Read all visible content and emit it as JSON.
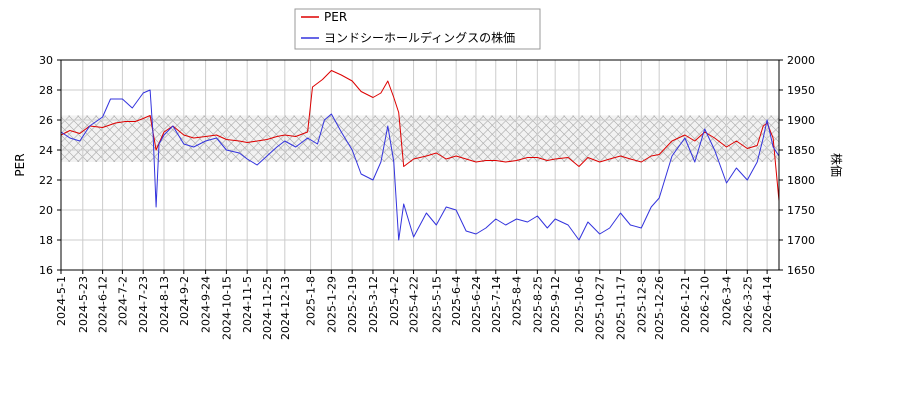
{
  "chart_data": {
    "type": "line",
    "title": "",
    "xlabel": "",
    "ylabel_left": "PER",
    "ylabel_right": "株価",
    "ylim_left": [
      16,
      30
    ],
    "ylim_right": [
      1650,
      2000
    ],
    "yticks_left": [
      "16",
      "18",
      "20",
      "22",
      "24",
      "26",
      "28",
      "30"
    ],
    "yticks_right": [
      "1650",
      "1700",
      "1750",
      "1800",
      "1850",
      "1900",
      "1950",
      "2000"
    ],
    "x_start": "2024-5-1",
    "x_end": "2026-4-26",
    "x_ticks": [
      "2024-5-1",
      "2024-5-23",
      "2024-6-12",
      "2024-7-2",
      "2024-7-23",
      "2024-8-13",
      "2024-9-2",
      "2024-9-24",
      "2024-10-15",
      "2024-11-5",
      "2024-11-25",
      "2024-12-13",
      "2025-1-8",
      "2025-1-29",
      "2025-2-19",
      "2025-3-12",
      "2025-4-2",
      "2025-4-22",
      "2025-5-15",
      "2025-6-4",
      "2025-6-24",
      "2025-7-14",
      "2025-8-4",
      "2025-8-25",
      "2025-9-12",
      "2025-10-6",
      "2025-10-27",
      "2025-11-17",
      "2025-12-8",
      "2025-12-26",
      "2026-1-21",
      "2026-2-10",
      "2026-3-4",
      "2026-3-25",
      "2026-4-14"
    ],
    "grid": true,
    "legend_placement": "top-center",
    "band_left": [
      23.2,
      26.3
    ],
    "series": [
      {
        "name": "PER",
        "axis": "left",
        "color": "#dd0000",
        "points": [
          [
            "2024-5-1",
            25.0
          ],
          [
            "2024-5-10",
            25.3
          ],
          [
            "2024-5-20",
            25.1
          ],
          [
            "2024-5-30",
            25.6
          ],
          [
            "2024-6-12",
            25.5
          ],
          [
            "2024-6-25",
            25.8
          ],
          [
            "2024-7-5",
            25.9
          ],
          [
            "2024-7-15",
            25.9
          ],
          [
            "2024-7-23",
            26.1
          ],
          [
            "2024-7-30",
            26.3
          ],
          [
            "2024-8-5",
            24.0
          ],
          [
            "2024-8-13",
            25.2
          ],
          [
            "2024-8-22",
            25.6
          ],
          [
            "2024-9-2",
            25.0
          ],
          [
            "2024-9-12",
            24.8
          ],
          [
            "2024-9-24",
            24.9
          ],
          [
            "2024-10-5",
            25.0
          ],
          [
            "2024-10-15",
            24.7
          ],
          [
            "2024-10-28",
            24.6
          ],
          [
            "2024-11-5",
            24.5
          ],
          [
            "2024-11-15",
            24.6
          ],
          [
            "2024-11-25",
            24.7
          ],
          [
            "2024-12-5",
            24.9
          ],
          [
            "2024-12-13",
            25.0
          ],
          [
            "2024-12-24",
            24.9
          ],
          [
            "2025-1-5",
            25.2
          ],
          [
            "2025-1-10",
            28.2
          ],
          [
            "2025-1-20",
            28.7
          ],
          [
            "2025-1-29",
            29.3
          ],
          [
            "2025-2-8",
            29.0
          ],
          [
            "2025-2-19",
            28.6
          ],
          [
            "2025-2-28",
            27.9
          ],
          [
            "2025-3-12",
            27.5
          ],
          [
            "2025-3-20",
            27.8
          ],
          [
            "2025-3-27",
            28.6
          ],
          [
            "2025-4-2",
            27.5
          ],
          [
            "2025-4-7",
            26.5
          ],
          [
            "2025-4-12",
            22.9
          ],
          [
            "2025-4-22",
            23.4
          ],
          [
            "2025-5-5",
            23.6
          ],
          [
            "2025-5-15",
            23.8
          ],
          [
            "2025-5-25",
            23.4
          ],
          [
            "2025-6-4",
            23.6
          ],
          [
            "2025-6-14",
            23.4
          ],
          [
            "2025-6-24",
            23.2
          ],
          [
            "2025-7-4",
            23.3
          ],
          [
            "2025-7-14",
            23.3
          ],
          [
            "2025-7-24",
            23.2
          ],
          [
            "2025-8-4",
            23.3
          ],
          [
            "2025-8-15",
            23.5
          ],
          [
            "2025-8-25",
            23.5
          ],
          [
            "2025-9-4",
            23.3
          ],
          [
            "2025-9-12",
            23.4
          ],
          [
            "2025-9-25",
            23.5
          ],
          [
            "2025-10-6",
            22.9
          ],
          [
            "2025-10-15",
            23.5
          ],
          [
            "2025-10-27",
            23.2
          ],
          [
            "2025-11-6",
            23.4
          ],
          [
            "2025-11-17",
            23.6
          ],
          [
            "2025-11-27",
            23.4
          ],
          [
            "2025-12-8",
            23.2
          ],
          [
            "2025-12-18",
            23.6
          ],
          [
            "2025-12-26",
            23.7
          ],
          [
            "2026-1-8",
            24.6
          ],
          [
            "2026-1-21",
            25.0
          ],
          [
            "2026-1-31",
            24.6
          ],
          [
            "2026-2-10",
            25.2
          ],
          [
            "2026-2-20",
            24.8
          ],
          [
            "2026-3-4",
            24.2
          ],
          [
            "2026-3-14",
            24.6
          ],
          [
            "2026-3-25",
            24.1
          ],
          [
            "2026-4-4",
            24.3
          ],
          [
            "2026-4-10",
            25.6
          ],
          [
            "2026-4-14",
            25.8
          ],
          [
            "2026-4-20",
            24.8
          ],
          [
            "2026-4-26",
            20.6
          ]
        ]
      },
      {
        "name": "ヨンドシーホールディングスの株価",
        "axis": "right",
        "color": "#3333dd",
        "points": [
          [
            "2024-5-1",
            1880
          ],
          [
            "2024-5-10",
            1870
          ],
          [
            "2024-5-20",
            1865
          ],
          [
            "2024-5-30",
            1890
          ],
          [
            "2024-6-12",
            1905
          ],
          [
            "2024-6-20",
            1935
          ],
          [
            "2024-7-2",
            1935
          ],
          [
            "2024-7-12",
            1920
          ],
          [
            "2024-7-23",
            1945
          ],
          [
            "2024-7-30",
            1950
          ],
          [
            "2024-8-2",
            1875
          ],
          [
            "2024-8-5",
            1755
          ],
          [
            "2024-8-8",
            1860
          ],
          [
            "2024-8-13",
            1875
          ],
          [
            "2024-8-22",
            1890
          ],
          [
            "2024-9-2",
            1860
          ],
          [
            "2024-9-12",
            1855
          ],
          [
            "2024-9-24",
            1865
          ],
          [
            "2024-10-5",
            1870
          ],
          [
            "2024-10-15",
            1850
          ],
          [
            "2024-10-28",
            1845
          ],
          [
            "2024-11-5",
            1835
          ],
          [
            "2024-11-15",
            1825
          ],
          [
            "2024-11-25",
            1840
          ],
          [
            "2024-12-5",
            1855
          ],
          [
            "2024-12-13",
            1865
          ],
          [
            "2024-12-24",
            1855
          ],
          [
            "2025-1-5",
            1870
          ],
          [
            "2025-1-15",
            1860
          ],
          [
            "2025-1-22",
            1900
          ],
          [
            "2025-1-29",
            1910
          ],
          [
            "2025-2-8",
            1880
          ],
          [
            "2025-2-19",
            1850
          ],
          [
            "2025-2-28",
            1810
          ],
          [
            "2025-3-12",
            1800
          ],
          [
            "2025-3-20",
            1830
          ],
          [
            "2025-3-27",
            1890
          ],
          [
            "2025-4-2",
            1830
          ],
          [
            "2025-4-7",
            1700
          ],
          [
            "2025-4-12",
            1760
          ],
          [
            "2025-4-22",
            1705
          ],
          [
            "2025-5-5",
            1745
          ],
          [
            "2025-5-15",
            1725
          ],
          [
            "2025-5-25",
            1755
          ],
          [
            "2025-6-4",
            1750
          ],
          [
            "2025-6-14",
            1715
          ],
          [
            "2025-6-24",
            1710
          ],
          [
            "2025-7-4",
            1720
          ],
          [
            "2025-7-14",
            1735
          ],
          [
            "2025-7-24",
            1725
          ],
          [
            "2025-8-4",
            1735
          ],
          [
            "2025-8-15",
            1730
          ],
          [
            "2025-8-25",
            1740
          ],
          [
            "2025-9-4",
            1720
          ],
          [
            "2025-9-12",
            1735
          ],
          [
            "2025-9-25",
            1725
          ],
          [
            "2025-10-6",
            1700
          ],
          [
            "2025-10-15",
            1730
          ],
          [
            "2025-10-27",
            1710
          ],
          [
            "2025-11-6",
            1720
          ],
          [
            "2025-11-17",
            1745
          ],
          [
            "2025-11-27",
            1725
          ],
          [
            "2025-12-8",
            1720
          ],
          [
            "2025-12-18",
            1755
          ],
          [
            "2025-12-26",
            1770
          ],
          [
            "2026-1-8",
            1840
          ],
          [
            "2026-1-21",
            1870
          ],
          [
            "2026-1-31",
            1830
          ],
          [
            "2026-2-10",
            1885
          ],
          [
            "2026-2-20",
            1850
          ],
          [
            "2026-3-4",
            1795
          ],
          [
            "2026-3-14",
            1820
          ],
          [
            "2026-3-25",
            1800
          ],
          [
            "2026-4-4",
            1830
          ],
          [
            "2026-4-10",
            1870
          ],
          [
            "2026-4-14",
            1900
          ],
          [
            "2026-4-20",
            1855
          ],
          [
            "2026-4-26",
            1840
          ]
        ]
      }
    ]
  }
}
